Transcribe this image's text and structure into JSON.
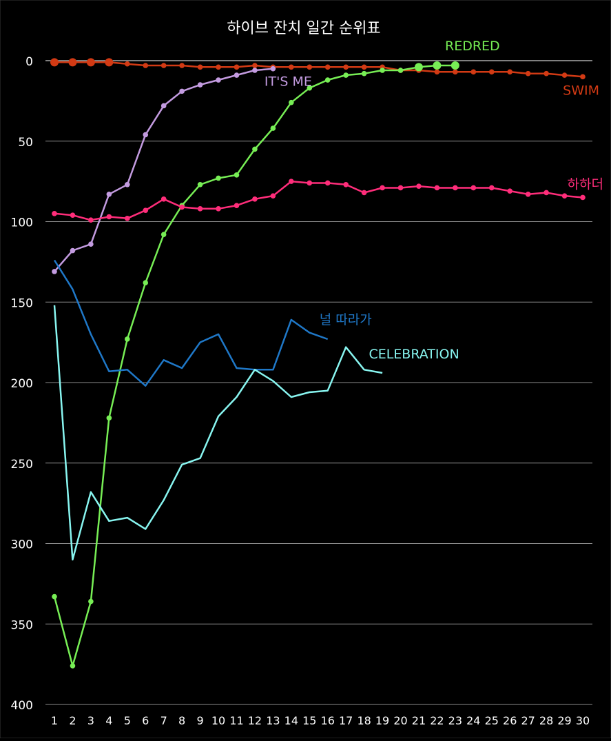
{
  "chart_data": {
    "type": "line",
    "title": "하이브 잔치 일간 순위표",
    "xlabel": "",
    "ylabel": "",
    "xlim": [
      1,
      30
    ],
    "ylim": [
      0,
      400
    ],
    "y_inverted": true,
    "grid": "horizontal",
    "x_ticks": [
      1,
      2,
      3,
      4,
      5,
      6,
      7,
      8,
      9,
      10,
      11,
      12,
      13,
      14,
      15,
      16,
      17,
      18,
      19,
      20,
      21,
      22,
      23,
      24,
      25,
      26,
      27,
      28,
      29,
      30
    ],
    "y_ticks": [
      0,
      50,
      100,
      150,
      200,
      250,
      300,
      350,
      400
    ],
    "series": [
      {
        "name": "SWIM",
        "color": "#d23a14",
        "markers": true,
        "x": [
          1,
          2,
          3,
          4,
          5,
          6,
          7,
          8,
          9,
          10,
          11,
          12,
          13,
          14,
          15,
          16,
          17,
          18,
          19,
          20,
          21,
          22,
          23,
          24,
          25,
          26,
          27,
          28,
          29,
          30
        ],
        "values": [
          1,
          1,
          1,
          1,
          2,
          3,
          3,
          3,
          4,
          4,
          4,
          3,
          4,
          4,
          4,
          4,
          4,
          4,
          4,
          6,
          6,
          7,
          7,
          7,
          7,
          7,
          8,
          8,
          9,
          10
        ]
      },
      {
        "name": "REDRED",
        "color": "#77ee55",
        "markers": true,
        "x": [
          1,
          2,
          3,
          4,
          5,
          6,
          7,
          8,
          9,
          10,
          11,
          12,
          13,
          14,
          15,
          16,
          17,
          18,
          19,
          20,
          21,
          22,
          23
        ],
        "values": [
          333,
          376,
          336,
          222,
          173,
          138,
          108,
          90,
          77,
          73,
          71,
          55,
          42,
          26,
          17,
          12,
          9,
          8,
          6,
          6,
          4,
          3,
          3
        ]
      },
      {
        "name": "IT'S ME",
        "color": "#c39be0",
        "markers": true,
        "x": [
          1,
          2,
          3,
          4,
          5,
          6,
          7,
          8,
          9,
          10,
          11,
          12,
          13
        ],
        "values": [
          131,
          118,
          114,
          83,
          77,
          46,
          28,
          19,
          15,
          12,
          9,
          6,
          5
        ]
      },
      {
        "name": "하하더",
        "color": "#ff2d7a",
        "markers": true,
        "x": [
          1,
          2,
          3,
          4,
          5,
          6,
          7,
          8,
          9,
          10,
          11,
          12,
          13,
          14,
          15,
          16,
          17,
          18,
          19,
          20,
          21,
          22,
          23,
          24,
          25,
          26,
          27,
          28,
          29,
          30
        ],
        "values": [
          95,
          96,
          99,
          97,
          98,
          93,
          86,
          91,
          92,
          92,
          90,
          86,
          84,
          75,
          76,
          76,
          77,
          82,
          79,
          79,
          78,
          79,
          79,
          79,
          79,
          81,
          83,
          82,
          84,
          85
        ]
      },
      {
        "name": "널 따라가",
        "color": "#1f78c8",
        "markers": false,
        "x": [
          1,
          2,
          3,
          4,
          5,
          6,
          7,
          8,
          9,
          10,
          11,
          12,
          13,
          14,
          15,
          16
        ],
        "values": [
          124,
          142,
          170,
          193,
          192,
          202,
          186,
          191,
          175,
          170,
          191,
          192,
          192,
          161,
          169,
          173
        ]
      },
      {
        "name": "CELEBRATION",
        "color": "#88f5f0",
        "markers": false,
        "x": [
          1,
          2,
          3,
          4,
          5,
          6,
          7,
          8,
          9,
          10,
          11,
          12,
          13,
          14,
          15,
          16,
          17,
          18,
          19
        ],
        "values": [
          152,
          310,
          268,
          286,
          284,
          291,
          273,
          251,
          247,
          221,
          209,
          192,
          199,
          209,
          206,
          205,
          178,
          192,
          194
        ]
      }
    ]
  }
}
